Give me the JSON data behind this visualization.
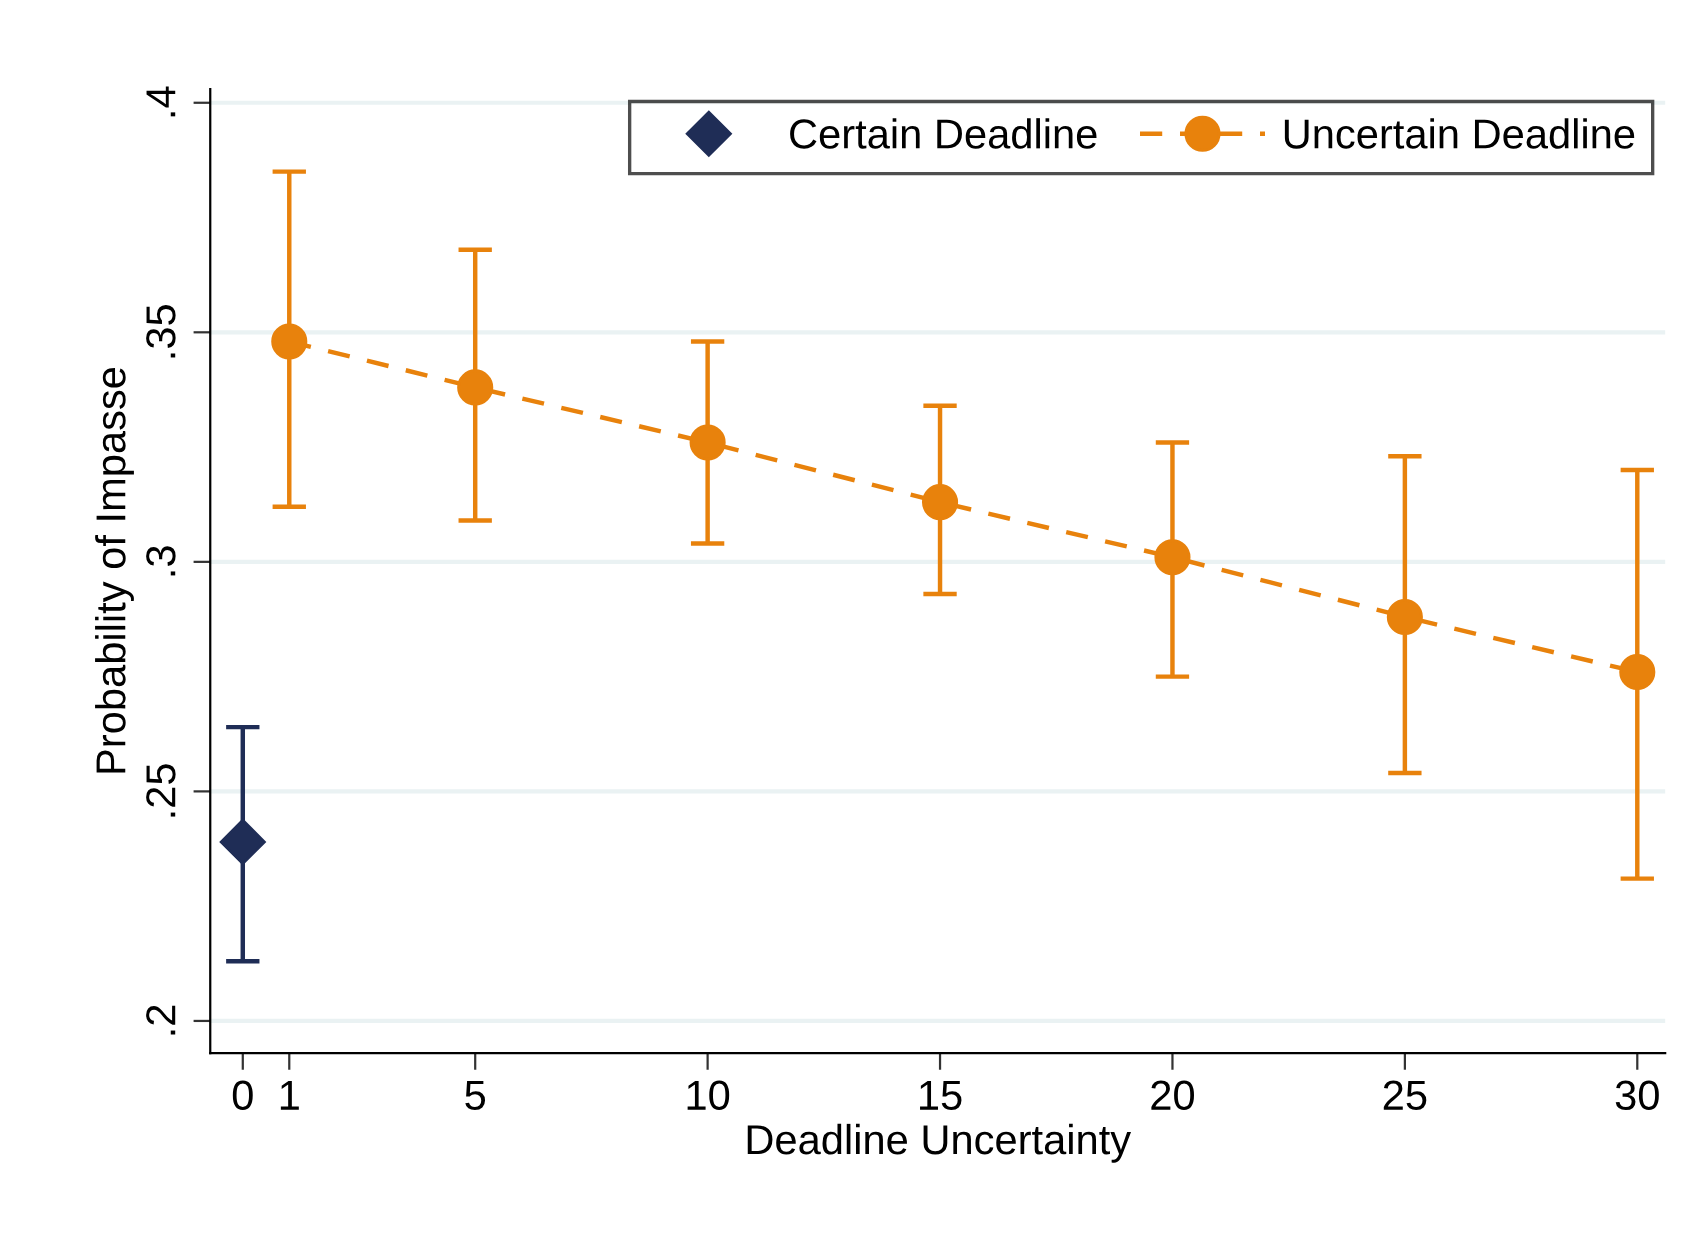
{
  "chart_data": {
    "type": "line",
    "xlabel": "Deadline Uncertainty",
    "ylabel": "Probability of Impasse",
    "xlim": [
      -0.7,
      30.6
    ],
    "xticks": [
      0,
      1,
      5,
      10,
      15,
      20,
      25,
      30
    ],
    "ylim": [
      0.193,
      0.403
    ],
    "yticks": [
      {
        "value": 0.2,
        "label": ".2"
      },
      {
        "value": 0.25,
        "label": ".25"
      },
      {
        "value": 0.3,
        "label": ".3"
      },
      {
        "value": 0.35,
        "label": ".35"
      },
      {
        "value": 0.4,
        "label": ".4"
      }
    ],
    "grid": "y",
    "legend": "top right",
    "series": [
      {
        "name": "Certain Deadline",
        "type": "scatter",
        "marker": "diamond",
        "color": "#1f2d56",
        "x": [
          0
        ],
        "values": [
          0.239
        ],
        "errors": [
          [
            0.213,
            0.264
          ]
        ]
      },
      {
        "name": "Uncertain Deadline",
        "marker": "circle",
        "line_style": "dashed",
        "color": "#e8820c",
        "x": [
          1,
          5,
          10,
          15,
          20,
          25,
          30
        ],
        "values": [
          0.348,
          0.338,
          0.326,
          0.313,
          0.301,
          0.288,
          0.276
        ],
        "errors": [
          [
            0.312,
            0.385
          ],
          [
            0.309,
            0.368
          ],
          [
            0.304,
            0.348
          ],
          [
            0.293,
            0.334
          ],
          [
            0.275,
            0.326
          ],
          [
            0.254,
            0.323
          ],
          [
            0.231,
            0.32
          ]
        ]
      }
    ]
  }
}
